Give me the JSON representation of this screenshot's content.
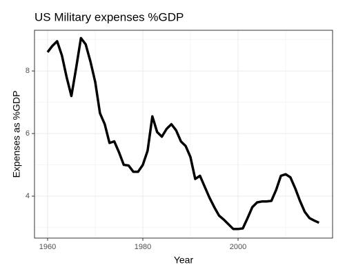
{
  "chart_data": {
    "type": "line",
    "title": "US Military expenses %GDP",
    "xlabel": "Year",
    "ylabel": "Expenses as %GDP",
    "x": [
      1960,
      1961,
      1962,
      1963,
      1964,
      1965,
      1966,
      1967,
      1968,
      1969,
      1970,
      1971,
      1972,
      1973,
      1974,
      1975,
      1976,
      1977,
      1978,
      1979,
      1980,
      1981,
      1982,
      1983,
      1984,
      1985,
      1986,
      1987,
      1988,
      1989,
      1990,
      1991,
      1992,
      1993,
      1994,
      1995,
      1996,
      1997,
      1998,
      1999,
      2000,
      2001,
      2002,
      2003,
      2004,
      2005,
      2006,
      2007,
      2008,
      2009,
      2010,
      2011,
      2012,
      2013,
      2014,
      2015,
      2016,
      2017
    ],
    "series": [
      {
        "name": "Expenses",
        "color": "#000000",
        "values": [
          8.6,
          8.8,
          8.95,
          8.5,
          7.8,
          7.2,
          8.1,
          9.05,
          8.85,
          8.3,
          7.65,
          6.65,
          6.3,
          5.7,
          5.75,
          5.4,
          5.0,
          4.98,
          4.78,
          4.78,
          5.0,
          5.45,
          6.55,
          6.05,
          5.9,
          6.15,
          6.3,
          6.1,
          5.75,
          5.6,
          5.25,
          4.55,
          4.65,
          4.3,
          3.95,
          3.65,
          3.38,
          3.25,
          3.1,
          2.95,
          2.95,
          2.97,
          3.3,
          3.65,
          3.8,
          3.83,
          3.83,
          3.85,
          4.2,
          4.65,
          4.7,
          4.6,
          4.25,
          3.85,
          3.5,
          3.3,
          3.22,
          3.15
        ]
      }
    ],
    "xlim": [
      1957.25,
      2019.85
    ],
    "ylim": [
      2.66,
      9.3
    ],
    "xticks": [
      1960,
      1980,
      2000
    ],
    "yticks": [
      4,
      6,
      8
    ],
    "xminor": [
      1970,
      1990,
      2010
    ],
    "yminor": [
      3,
      5,
      7,
      9
    ],
    "grid": true
  }
}
